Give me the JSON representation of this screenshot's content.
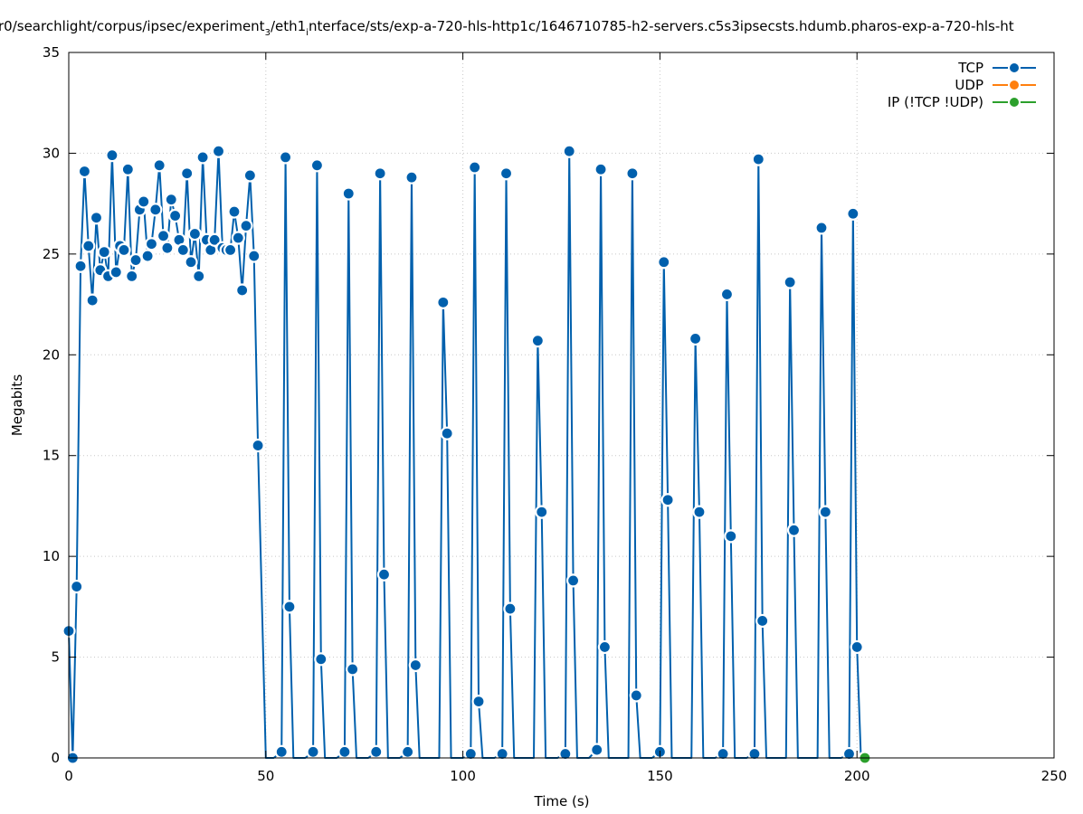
{
  "chart_data": {
    "type": "line",
    "title": "r0/searchlight/corpus/ipsec/experiment",
    "title_sub1": "3",
    "title_mid": "/eth1",
    "title_sub2": "i",
    "title_end": "nterface/sts/exp-a-720-hls-http1c/1646710785-h2-servers.c5s3ipsecsts.hdumb.pharos-exp-a-720-hls-ht",
    "xlabel": "Time (s)",
    "ylabel": "Megabits",
    "xlim": [
      0,
      250
    ],
    "ylim": [
      0,
      35
    ],
    "xticks": [
      "0",
      "50",
      "100",
      "150",
      "200",
      "250"
    ],
    "yticks": [
      "0",
      "5",
      "10",
      "15",
      "20",
      "25",
      "30",
      "35"
    ],
    "grid": true,
    "legend_position": "top-right",
    "colors": {
      "TCP": "#0060ad",
      "UDP": "#ff7f0e",
      "IP (!TCP  !UDP)": "#2ca02c"
    },
    "series": [
      {
        "name": "TCP",
        "x": [
          0,
          1,
          2,
          3,
          4,
          5,
          6,
          7,
          8,
          9,
          10,
          11,
          12,
          13,
          14,
          15,
          16,
          17,
          18,
          19,
          20,
          21,
          22,
          23,
          24,
          25,
          26,
          27,
          28,
          29,
          30,
          31,
          32,
          33,
          34,
          35,
          36,
          37,
          38,
          39,
          40,
          41,
          42,
          43,
          44,
          45,
          46,
          47,
          48,
          50,
          52,
          54,
          55,
          56,
          57,
          60,
          62,
          63,
          64,
          65,
          68,
          70,
          71,
          72,
          73,
          76,
          78,
          79,
          80,
          81,
          84,
          86,
          87,
          88,
          89,
          92,
          94,
          95,
          96,
          97,
          100,
          102,
          103,
          104,
          105,
          108,
          110,
          111,
          112,
          113,
          116,
          118,
          119,
          120,
          121,
          124,
          126,
          127,
          128,
          129,
          132,
          134,
          135,
          136,
          137,
          140,
          142,
          143,
          144,
          145,
          148,
          150,
          151,
          152,
          153,
          156,
          158,
          159,
          160,
          161,
          164,
          166,
          167,
          168,
          169,
          172,
          174,
          175,
          176,
          177,
          180,
          182,
          183,
          184,
          185,
          188,
          190,
          191,
          192,
          193,
          196,
          198,
          199,
          200,
          201
        ],
        "values": [
          6.3,
          0,
          8.5,
          24.4,
          29.1,
          25.4,
          22.7,
          26.8,
          24.2,
          25.1,
          23.9,
          29.9,
          24.1,
          25.4,
          25.2,
          29.2,
          23.9,
          24.7,
          27.2,
          27.6,
          24.9,
          25.5,
          27.2,
          29.4,
          25.9,
          25.3,
          27.7,
          26.9,
          25.7,
          25.2,
          29.0,
          24.6,
          26.0,
          23.9,
          29.8,
          25.7,
          25.2,
          25.7,
          30.1,
          25.3,
          25.2,
          25.2,
          27.1,
          25.8,
          23.2,
          26.4,
          28.9,
          24.9,
          15.5,
          0,
          0,
          0.3,
          29.8,
          7.5,
          0,
          0,
          0.3,
          29.4,
          4.9,
          0,
          0,
          0.3,
          28.0,
          4.4,
          0,
          0,
          0.3,
          29.0,
          9.1,
          0,
          0,
          0.3,
          28.8,
          4.6,
          0,
          0,
          0,
          22.6,
          16.1,
          0,
          0,
          0.2,
          29.3,
          2.8,
          0,
          0,
          0.2,
          29.0,
          7.4,
          0,
          0,
          0,
          20.7,
          12.2,
          0,
          0,
          0.2,
          30.1,
          8.8,
          0,
          0,
          0.4,
          29.2,
          5.5,
          0,
          0,
          0,
          29.0,
          3.1,
          0,
          0,
          0.3,
          24.6,
          12.8,
          0,
          0,
          0,
          20.8,
          12.2,
          0,
          0,
          0.2,
          23.0,
          11.0,
          0,
          0,
          0.2,
          29.7,
          6.8,
          0,
          0,
          0,
          23.6,
          11.3,
          0,
          0,
          0,
          26.3,
          12.2,
          0,
          0,
          0.2,
          27.0,
          5.5,
          0
        ]
      },
      {
        "name": "UDP",
        "x": [],
        "values": []
      },
      {
        "name": "IP (!TCP  !UDP)",
        "x": [
          202
        ],
        "values": [
          0
        ]
      }
    ],
    "legend": [
      "TCP",
      "UDP",
      "IP (!TCP  !UDP)"
    ]
  }
}
